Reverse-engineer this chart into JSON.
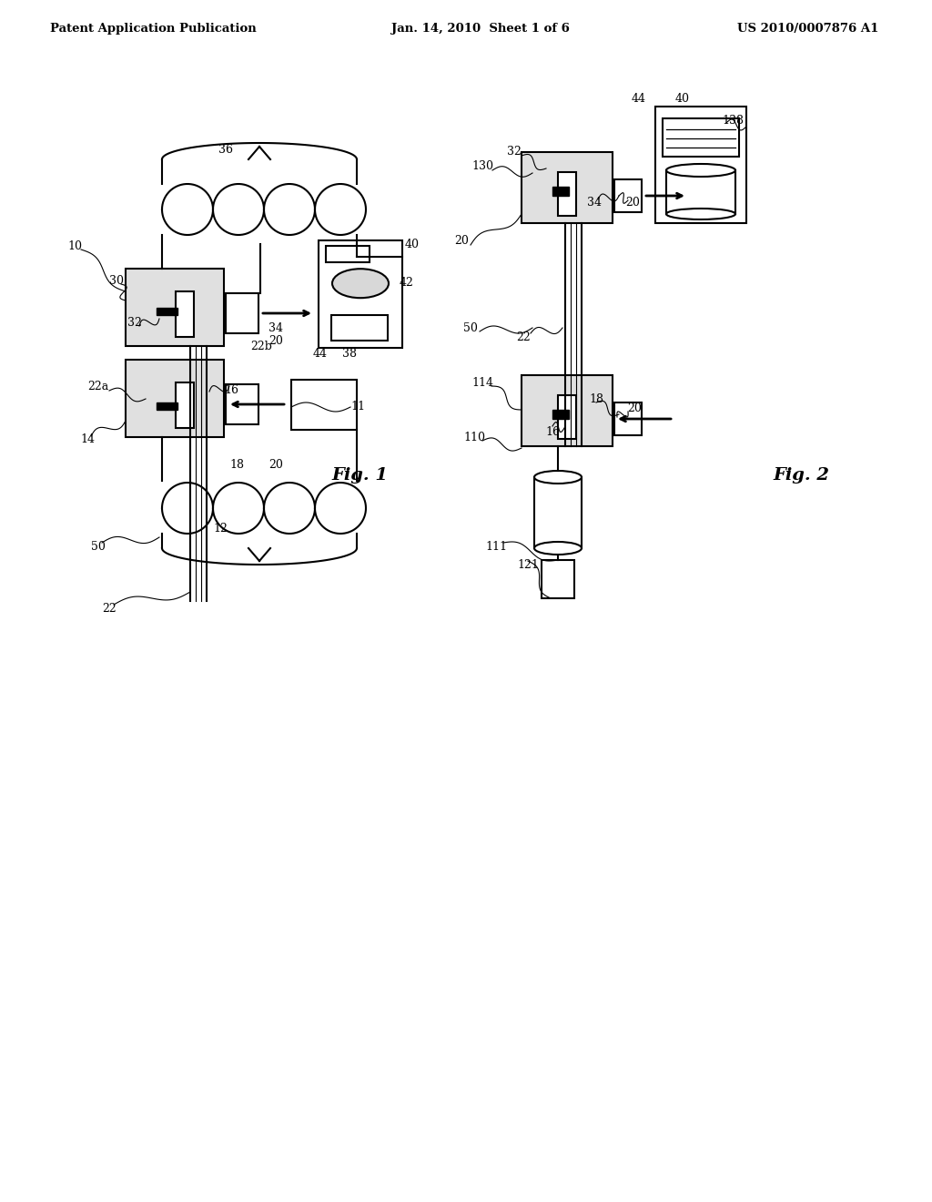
{
  "bg_color": "#ffffff",
  "line_color": "#000000",
  "header_left": "Patent Application Publication",
  "header_mid": "Jan. 14, 2010  Sheet 1 of 6",
  "header_right": "US 2010/0007876 A1",
  "fig1_label": "Fig. 1",
  "fig2_label": "Fig. 2"
}
